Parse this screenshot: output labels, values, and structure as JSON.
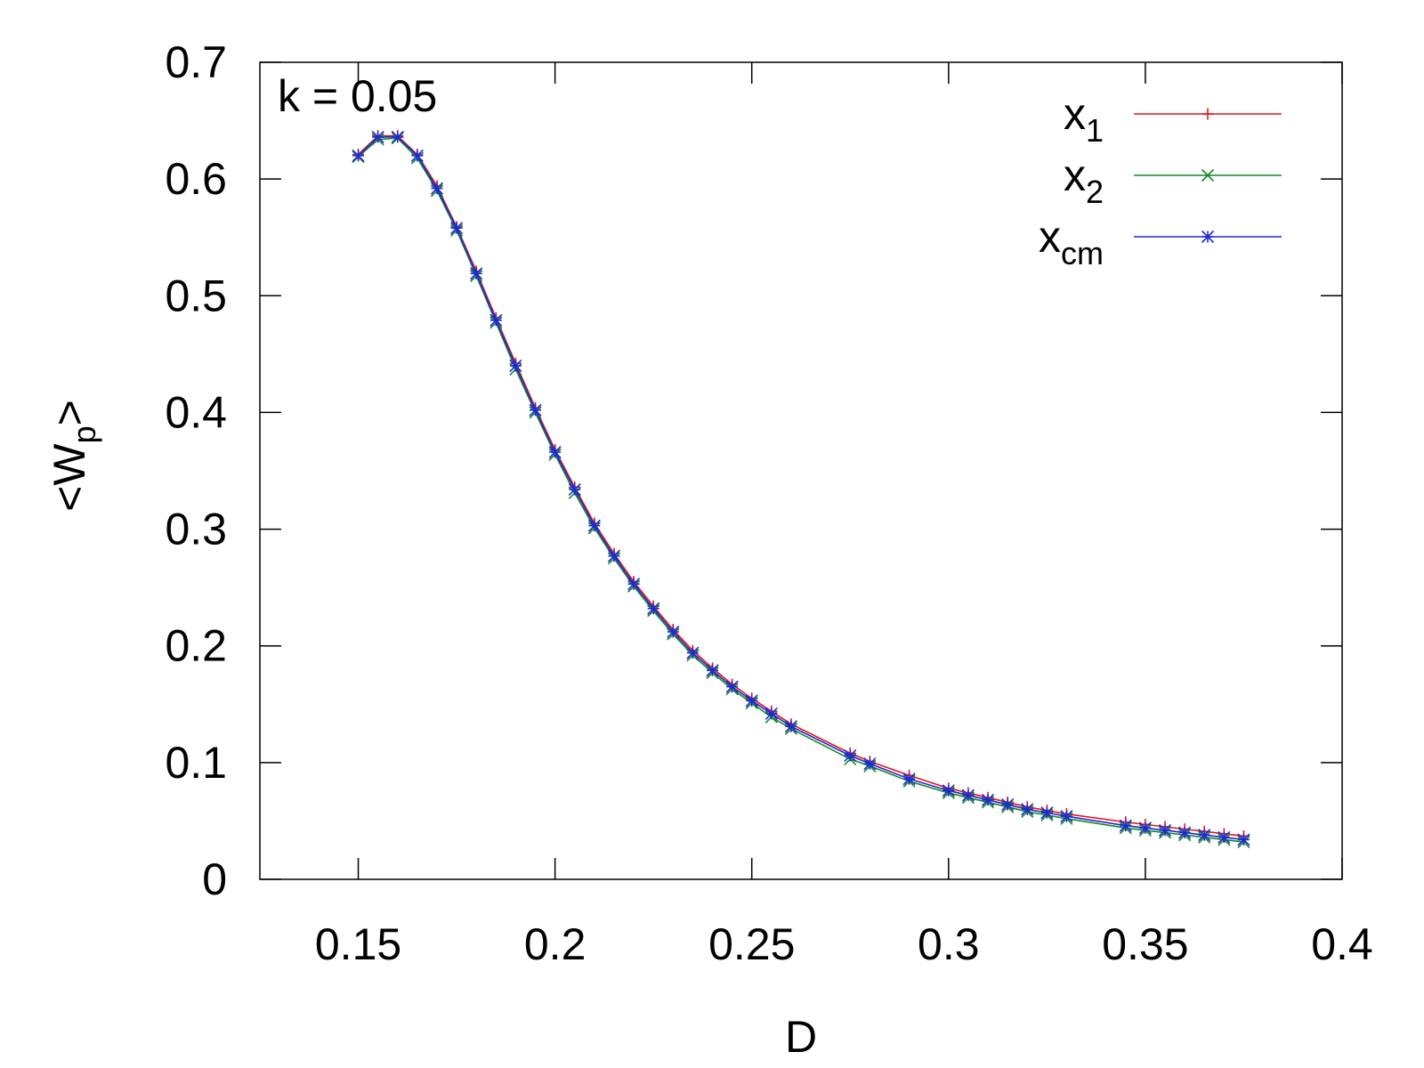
{
  "chart_data": {
    "type": "line",
    "title": "",
    "annotation": "k = 0.05",
    "xlabel": "D",
    "ylabel": {
      "base": "<W",
      "sub": "p",
      "end": ">"
    },
    "xlim": [
      0.125,
      0.4
    ],
    "ylim": [
      0,
      0.7
    ],
    "xticks": [
      0.15,
      0.2,
      0.25,
      0.3,
      0.35,
      0.4
    ],
    "xtick_labels": [
      "0.15",
      "0.2",
      "0.25",
      "0.3",
      "0.35",
      "0.4"
    ],
    "yticks": [
      0,
      0.1,
      0.2,
      0.3,
      0.4,
      0.5,
      0.6,
      0.7
    ],
    "ytick_labels": [
      "0",
      "0.1",
      "0.2",
      "0.3",
      "0.4",
      "0.5",
      "0.6",
      "0.7"
    ],
    "grid": false,
    "legend_position": "top-right",
    "x": [
      0.15,
      0.155,
      0.16,
      0.165,
      0.17,
      0.175,
      0.18,
      0.185,
      0.19,
      0.195,
      0.2,
      0.205,
      0.21,
      0.215,
      0.22,
      0.225,
      0.23,
      0.235,
      0.24,
      0.245,
      0.25,
      0.255,
      0.26,
      0.275,
      0.28,
      0.29,
      0.3,
      0.305,
      0.31,
      0.315,
      0.32,
      0.325,
      0.33,
      0.345,
      0.35,
      0.355,
      0.36,
      0.365,
      0.37,
      0.375
    ],
    "series": [
      {
        "name": "x",
        "name_sub": "1",
        "color": "#e8141e",
        "marker": "plus",
        "values": [
          0.621,
          0.637,
          0.637,
          0.621,
          0.594,
          0.559,
          0.521,
          0.481,
          0.442,
          0.404,
          0.368,
          0.336,
          0.305,
          0.279,
          0.255,
          0.234,
          0.214,
          0.196,
          0.181,
          0.167,
          0.155,
          0.144,
          0.133,
          0.108,
          0.101,
          0.089,
          0.078,
          0.074,
          0.07,
          0.066,
          0.062,
          0.059,
          0.056,
          0.049,
          0.047,
          0.045,
          0.043,
          0.041,
          0.039,
          0.037
        ]
      },
      {
        "name": "x",
        "name_sub": "2",
        "color": "#138a22",
        "marker": "cross",
        "values": [
          0.619,
          0.634,
          0.635,
          0.618,
          0.59,
          0.556,
          0.517,
          0.477,
          0.437,
          0.4,
          0.364,
          0.331,
          0.301,
          0.275,
          0.251,
          0.23,
          0.21,
          0.192,
          0.177,
          0.163,
          0.151,
          0.139,
          0.129,
          0.103,
          0.097,
          0.084,
          0.074,
          0.07,
          0.066,
          0.062,
          0.058,
          0.055,
          0.052,
          0.044,
          0.042,
          0.04,
          0.038,
          0.036,
          0.034,
          0.032
        ]
      },
      {
        "name": "x",
        "name_sub": "cm",
        "color": "#1f2ad6",
        "marker": "star",
        "values": [
          0.62,
          0.636,
          0.636,
          0.62,
          0.592,
          0.558,
          0.519,
          0.479,
          0.44,
          0.402,
          0.366,
          0.334,
          0.303,
          0.277,
          0.253,
          0.232,
          0.212,
          0.194,
          0.179,
          0.165,
          0.153,
          0.142,
          0.131,
          0.106,
          0.099,
          0.086,
          0.076,
          0.072,
          0.068,
          0.064,
          0.06,
          0.057,
          0.054,
          0.046,
          0.044,
          0.042,
          0.04,
          0.038,
          0.036,
          0.034
        ]
      }
    ]
  }
}
